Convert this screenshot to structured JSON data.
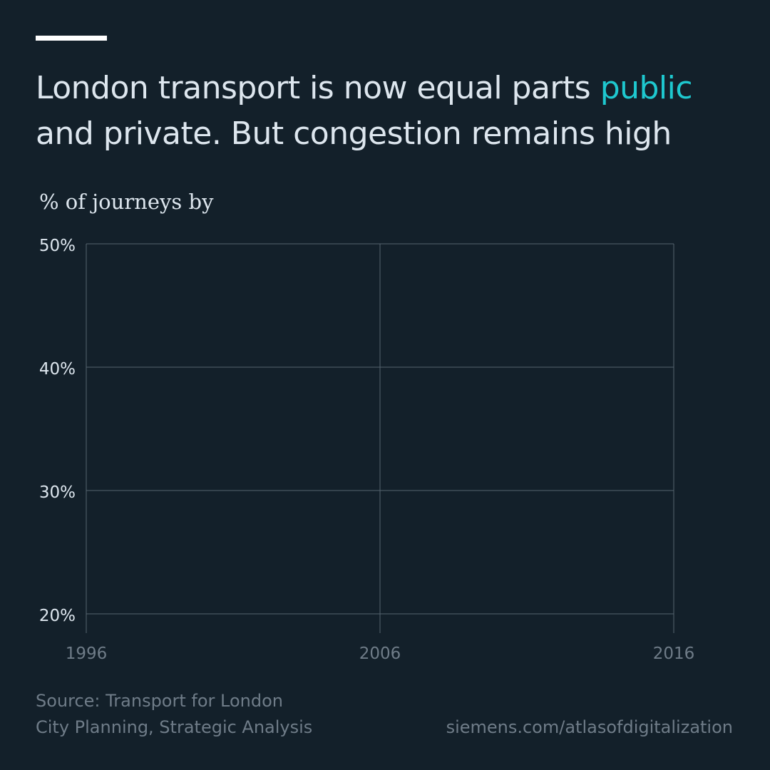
{
  "headline": {
    "part1": "London transport is now equal parts ",
    "accent_word": "public",
    "part2": "and private. But congestion remains high"
  },
  "colors": {
    "background": "#13202a",
    "accent": "#1ec8cf",
    "text": "#dde6ee",
    "muted": "#6f7c88",
    "grid": "#55636e"
  },
  "chart_data": {
    "type": "line",
    "title": "London transport is now equal parts public and private. But congestion remains high",
    "ylabel": "% of journeys by",
    "xlabel": "",
    "x_ticks": [
      "1996",
      "2006",
      "2016"
    ],
    "y_ticks": [
      "20%",
      "30%",
      "40%",
      "50%"
    ],
    "xlim": [
      1996,
      2016
    ],
    "ylim": [
      20,
      50
    ],
    "grid": true,
    "series": []
  },
  "footer": {
    "source_line1": "Source: Transport for London",
    "source_line2": "City Planning, Strategic Analysis",
    "site": "siemens.com/atlasofdigitalization"
  }
}
